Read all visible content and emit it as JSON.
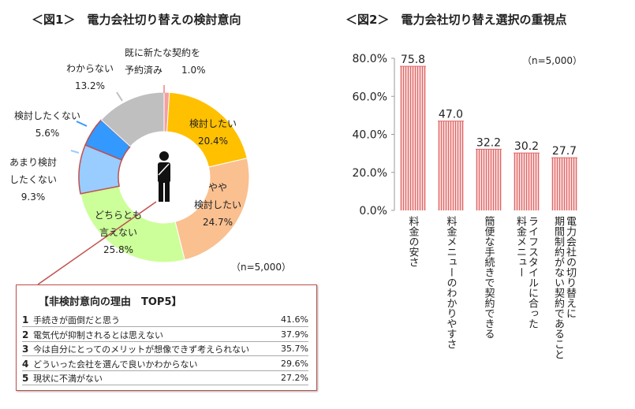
{
  "fig1": {
    "title": "＜図1＞　電力会社切り替えの検討意向",
    "n": "（n=5,000）",
    "slices": [
      {
        "label": "既に新たな契約を予約済み",
        "value": 1.0,
        "value_label": "1.0%",
        "color": "#f4a0a0"
      },
      {
        "label": "検討したい",
        "value": 20.4,
        "value_label": "20.4%",
        "color": "#ffc000"
      },
      {
        "label": "やや検討したい",
        "value": 24.7,
        "value_label": "24.7%",
        "color": "#fac090"
      },
      {
        "label": "どちらとも言えない",
        "value": 25.8,
        "value_label": "25.8%",
        "color": "#ccff99"
      },
      {
        "label": "あまり検討したくない",
        "value": 9.3,
        "value_label": "9.3%",
        "color": "#99ccff"
      },
      {
        "label": "検討したくない",
        "value": 5.6,
        "value_label": "5.6%",
        "color": "#3399ff"
      },
      {
        "label": "わからない",
        "value": 13.2,
        "value_label": "13.2%",
        "color": "#bfbfbf"
      }
    ],
    "center_icon": "person-icon"
  },
  "reasons": {
    "title": "【非検討意向の理由　TOP5】",
    "items": [
      {
        "rank": "1",
        "text": "手続きが面倒だと思う",
        "pct": "41.6%"
      },
      {
        "rank": "2",
        "text": "電気代が抑制されるとは思えない",
        "pct": "37.9%"
      },
      {
        "rank": "3",
        "text": "今は自分にとってのメリットが想像できず考えられない",
        "pct": "35.7%"
      },
      {
        "rank": "4",
        "text": "どういった会社を選んで良いかわからない",
        "pct": "29.6%"
      },
      {
        "rank": "5",
        "text": "現状に不満がない",
        "pct": "27.2%"
      }
    ]
  },
  "fig2": {
    "title": "＜図2＞　電力会社切り替え選択の重視点",
    "n": "（n=5,000）"
  },
  "chart_data": [
    {
      "type": "pie",
      "title": "＜図1＞　電力会社切り替えの検討意向",
      "categories": [
        "既に新たな契約を予約済み",
        "検討したい",
        "やや検討したい",
        "どちらとも言えない",
        "あまり検討したくない",
        "検討したくない",
        "わからない"
      ],
      "values": [
        1.0,
        20.4,
        24.7,
        25.8,
        9.3,
        5.6,
        13.2
      ]
    },
    {
      "type": "bar",
      "title": "＜図2＞　電力会社切り替え選択の重視点",
      "categories": [
        "料金の安さ",
        "料金メニューのわかりやすさ",
        "簡便な手続きで契約できる",
        "ライフスタイルに合った\n料金メニュー",
        "電力会社の切り替えに\n期間制約がない契約であること"
      ],
      "values": [
        75.8,
        47.0,
        32.2,
        30.2,
        27.7
      ],
      "value_labels": [
        "75.8",
        "47.0",
        "32.2",
        "30.2",
        "27.7"
      ],
      "ylim": [
        0,
        80
      ],
      "yticks": [
        "0.0%",
        "20.0%",
        "40.0%",
        "60.0%",
        "80.0%"
      ],
      "bar_color": "#e06666",
      "grid": false
    }
  ]
}
